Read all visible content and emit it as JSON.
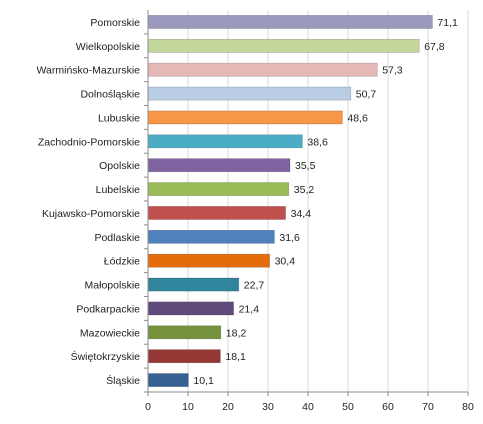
{
  "chart_data": {
    "type": "bar",
    "orientation": "horizontal",
    "categories": [
      "Pomorskie",
      "Wielkopolskie",
      "Warmińsko-Mazurskie",
      "Dolnośląskie",
      "Lubuskie",
      "Zachodnio-Pomorskie",
      "Opolskie",
      "Lubelskie",
      "Kujawsko-Pomorskie",
      "Podlaskie",
      "Łódzkie",
      "Małopolskie",
      "Podkarpackie",
      "Mazowieckie",
      "Świętokrzyskie",
      "Śląskie"
    ],
    "values": [
      71.1,
      67.8,
      57.3,
      50.7,
      48.6,
      38.6,
      35.5,
      35.2,
      34.4,
      31.6,
      30.4,
      22.7,
      21.4,
      18.2,
      18.1,
      10.1
    ],
    "value_labels": [
      "71,1",
      "67,8",
      "57,3",
      "50,7",
      "48,6",
      "38,6",
      "35,5",
      "35,2",
      "34,4",
      "31,6",
      "30,4",
      "22,7",
      "21,4",
      "18,2",
      "18,1",
      "10,1"
    ],
    "colors": [
      "#9b98bd",
      "#c3d69b",
      "#e6b9b8",
      "#b9cde5",
      "#f79646",
      "#4bacc6",
      "#8064a2",
      "#9bbb59",
      "#c0504d",
      "#4f81bd",
      "#e46c0a",
      "#31859c",
      "#604a7b",
      "#76923c",
      "#953735",
      "#376092"
    ],
    "xlim": [
      0,
      80
    ],
    "xticks": [
      0,
      10,
      20,
      30,
      40,
      50,
      60,
      70,
      80
    ],
    "xtick_labels": [
      "0",
      "10",
      "20",
      "30",
      "40",
      "50",
      "60",
      "70",
      "80"
    ],
    "grid": true,
    "legend": "none",
    "title": "",
    "xlabel": "",
    "ylabel": ""
  }
}
